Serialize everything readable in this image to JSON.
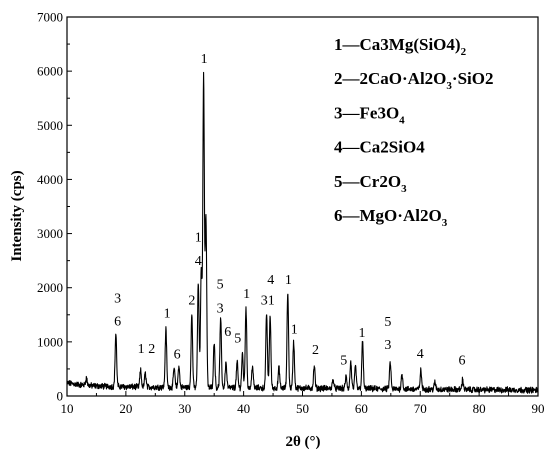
{
  "chart_data": {
    "type": "line",
    "xlabel": "2θ (°)",
    "ylabel": "Intensity (cps)",
    "xlim": [
      10,
      90
    ],
    "ylim": [
      0,
      7000
    ],
    "x_ticks": [
      "10",
      "20",
      "30",
      "40",
      "50",
      "60",
      "70",
      "80",
      "90"
    ],
    "y_ticks": [
      "0",
      "1000",
      "2000",
      "3000",
      "4000",
      "5000",
      "6000",
      "7000"
    ],
    "grid": false,
    "legend_position": "top-right",
    "legend": [
      {
        "id": "1",
        "text": "1—Ca3Mg(SiO4)2"
      },
      {
        "id": "2",
        "text": "2—2CaO·Al2O3·SiO2"
      },
      {
        "id": "3",
        "text": "3—Fe3O4"
      },
      {
        "id": "4",
        "text": "4—Ca2SiO4"
      },
      {
        "id": "5",
        "text": "5—Cr2O3"
      },
      {
        "id": "6",
        "text": "6—MgO·Al2O3"
      }
    ],
    "series": [
      {
        "baseline": [
          [
            10,
            240
          ],
          [
            12,
            210
          ],
          [
            14,
            190
          ],
          [
            16,
            180
          ],
          [
            18,
            175
          ],
          [
            20,
            170
          ],
          [
            25,
            165
          ],
          [
            30,
            160
          ],
          [
            35,
            155
          ],
          [
            40,
            150
          ],
          [
            45,
            148
          ],
          [
            50,
            145
          ],
          [
            55,
            140
          ],
          [
            60,
            135
          ],
          [
            65,
            130
          ],
          [
            70,
            125
          ],
          [
            75,
            120
          ],
          [
            80,
            115
          ],
          [
            85,
            112
          ],
          [
            90,
            110
          ]
        ],
        "peaks": [
          [
            13.3,
            330
          ],
          [
            18.3,
            1150
          ],
          [
            22.5,
            470
          ],
          [
            23.3,
            420
          ],
          [
            26.8,
            1230
          ],
          [
            28.2,
            520
          ],
          [
            29.0,
            560
          ],
          [
            31.2,
            1500
          ],
          [
            32.3,
            2100
          ],
          [
            32.8,
            2300
          ],
          [
            33.2,
            5880
          ],
          [
            33.6,
            3300
          ],
          [
            35.0,
            1000
          ],
          [
            36.1,
            1420
          ],
          [
            37.0,
            620
          ],
          [
            38.9,
            620
          ],
          [
            39.8,
            780
          ],
          [
            40.4,
            1620
          ],
          [
            41.5,
            560
          ],
          [
            43.9,
            1530
          ],
          [
            44.5,
            1480
          ],
          [
            46.0,
            520
          ],
          [
            47.5,
            1920
          ],
          [
            48.5,
            1000
          ],
          [
            52.0,
            550
          ],
          [
            55.2,
            300
          ],
          [
            57.4,
            360
          ],
          [
            58.2,
            620
          ],
          [
            59.0,
            550
          ],
          [
            60.2,
            1000
          ],
          [
            64.9,
            620
          ],
          [
            66.9,
            400
          ],
          [
            70.1,
            470
          ],
          [
            72.5,
            250
          ],
          [
            77.2,
            300
          ]
        ]
      }
    ],
    "annotations": [
      {
        "text": "1",
        "x": 33.3,
        "y": 6150
      },
      {
        "text": "1",
        "x": 32.3,
        "y": 2850
      },
      {
        "text": "4",
        "x": 32.3,
        "y": 2420
      },
      {
        "text": "5",
        "x": 36.0,
        "y": 1990
      },
      {
        "text": "3",
        "x": 36.0,
        "y": 1540
      },
      {
        "text": "4",
        "x": 44.6,
        "y": 2070
      },
      {
        "text": "1",
        "x": 47.6,
        "y": 2070
      },
      {
        "text": "1",
        "x": 40.5,
        "y": 1810
      },
      {
        "text": "31",
        "x": 44.1,
        "y": 1690
      },
      {
        "text": "3",
        "x": 18.6,
        "y": 1730
      },
      {
        "text": "6",
        "x": 18.6,
        "y": 1300
      },
      {
        "text": "1",
        "x": 27.0,
        "y": 1450
      },
      {
        "text": "2",
        "x": 31.2,
        "y": 1690
      },
      {
        "text": "6",
        "x": 37.3,
        "y": 1110
      },
      {
        "text": "5",
        "x": 39.0,
        "y": 990
      },
      {
        "text": "1",
        "x": 48.6,
        "y": 1150
      },
      {
        "text": "1",
        "x": 22.6,
        "y": 790
      },
      {
        "text": "2",
        "x": 24.4,
        "y": 790
      },
      {
        "text": "6",
        "x": 28.7,
        "y": 690
      },
      {
        "text": "2",
        "x": 52.2,
        "y": 780
      },
      {
        "text": "1",
        "x": 60.1,
        "y": 1090
      },
      {
        "text": "5",
        "x": 64.5,
        "y": 1290
      },
      {
        "text": "3",
        "x": 64.5,
        "y": 870
      },
      {
        "text": "5",
        "x": 57.0,
        "y": 580
      },
      {
        "text": "4",
        "x": 70.0,
        "y": 700
      },
      {
        "text": "6",
        "x": 77.1,
        "y": 580
      }
    ]
  }
}
